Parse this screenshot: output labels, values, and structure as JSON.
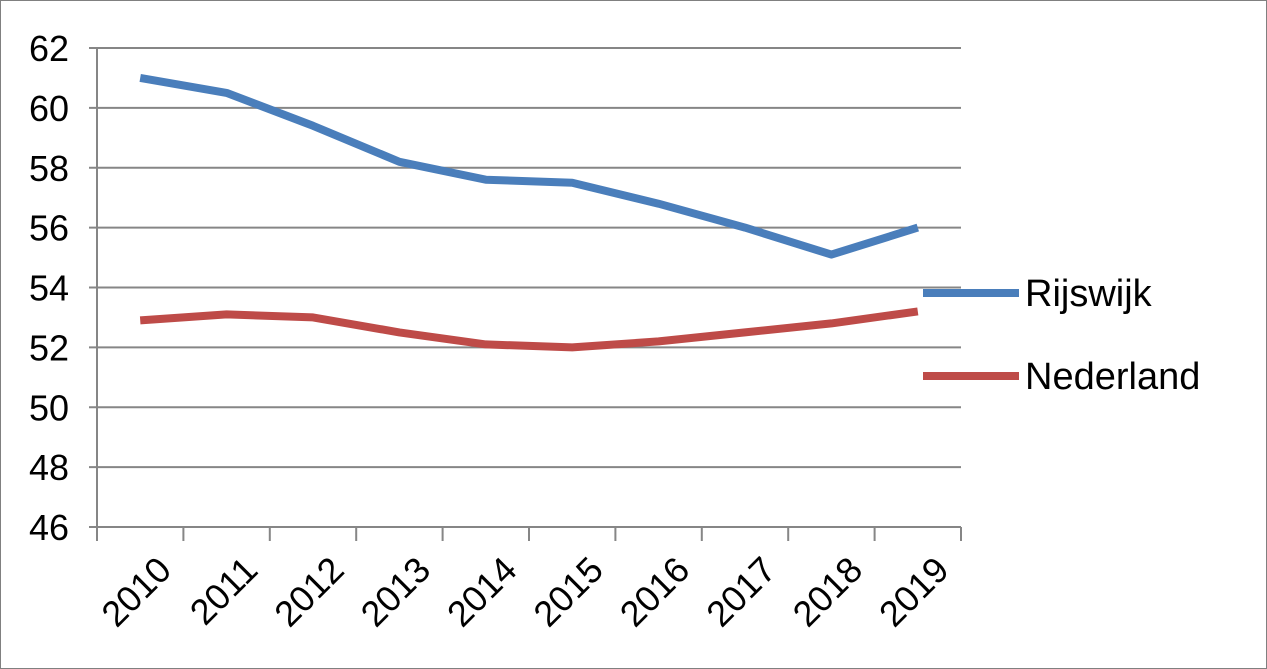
{
  "chart_data": {
    "type": "line",
    "title": "",
    "xlabel": "",
    "ylabel": "",
    "categories": [
      "2010",
      "2011",
      "2012",
      "2013",
      "2014",
      "2015",
      "2016",
      "2017",
      "2018",
      "2019"
    ],
    "ylim": [
      46,
      62
    ],
    "y_ticks": [
      46,
      48,
      50,
      52,
      54,
      56,
      58,
      60,
      62
    ],
    "grid": "horizontal",
    "legend_position": "right",
    "series": [
      {
        "name": "Rijswijk",
        "color": "#4a7ebb",
        "values": [
          61.0,
          60.5,
          59.4,
          58.2,
          57.6,
          57.5,
          56.8,
          56.0,
          55.1,
          56.0
        ]
      },
      {
        "name": "Nederland",
        "color": "#be4b48",
        "values": [
          52.9,
          53.1,
          53.0,
          52.5,
          52.1,
          52.0,
          52.2,
          52.5,
          52.8,
          53.2
        ]
      }
    ]
  }
}
